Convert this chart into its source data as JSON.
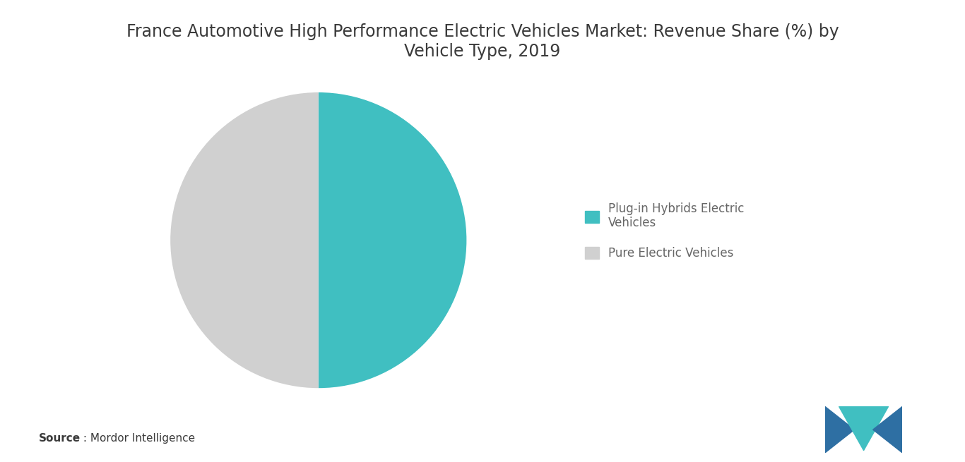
{
  "title": "France Automotive High Performance Electric Vehicles Market: Revenue Share (%) by\nVehicle Type, 2019",
  "slices": [
    50,
    50
  ],
  "labels": [
    "Plug-in Hybrids Electric\nVehicles",
    "Pure Electric Vehicles"
  ],
  "colors": [
    "#40BFC1",
    "#D0D0D0"
  ],
  "startangle": 90,
  "source_label_bold": "Source",
  "source_label_rest": " : Mordor Intelligence",
  "background_color": "#FFFFFF",
  "title_fontsize": 17,
  "legend_fontsize": 12,
  "source_fontsize": 11
}
